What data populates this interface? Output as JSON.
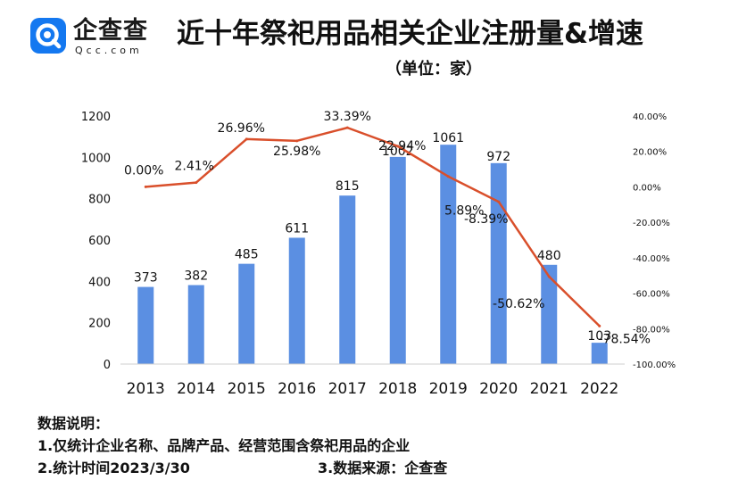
{
  "brand": {
    "name": "企查查",
    "domain": "Qcc.com",
    "logo_color": "#1478f0"
  },
  "title": "近十年祭祀用品相关企业注册量&增速",
  "unit_label": "（单位：家）",
  "chart_data": {
    "type": "bar",
    "categories": [
      "2013",
      "2014",
      "2015",
      "2016",
      "2017",
      "2018",
      "2019",
      "2020",
      "2021",
      "2022"
    ],
    "series": [
      {
        "type": "bar",
        "axis": "left",
        "color": "#5b8fe2",
        "values": [
          373,
          382,
          485,
          611,
          815,
          1002,
          1061,
          972,
          480,
          103
        ],
        "labels": [
          "373",
          "382",
          "485",
          "611",
          "815",
          "1002",
          "1061",
          "972",
          "480",
          "103"
        ]
      },
      {
        "type": "line",
        "axis": "right",
        "color": "#d94f2b",
        "values": [
          0.0,
          2.41,
          26.96,
          25.98,
          33.39,
          22.94,
          5.89,
          -8.39,
          -50.62,
          -78.54
        ],
        "labels": [
          "0.00%",
          "2.41%",
          "26.96%",
          "25.98%",
          "33.39%",
          "22.94%",
          "5.89%",
          "-8.39%",
          "-50.62%",
          "-78.54%"
        ]
      }
    ],
    "y_left": {
      "min": 0,
      "max": 1200,
      "ticks": [
        "0",
        "200",
        "400",
        "600",
        "800",
        "1000",
        "1200"
      ]
    },
    "y_right": {
      "min": -100,
      "max": 40,
      "ticks": [
        "-100.00%",
        "-80.00%",
        "-60.00%",
        "-40.00%",
        "-20.00%",
        "0.00%",
        "20.00%",
        "40.00%"
      ]
    },
    "grid": false,
    "legend": "none"
  },
  "notes": {
    "heading": "数据说明：",
    "line1": "1.仅统计企业名称、品牌产品、经营范围含祭祀用品的企业",
    "line2": "2.统计时间2023/3/30",
    "line3": "3.数据来源：企查查"
  }
}
